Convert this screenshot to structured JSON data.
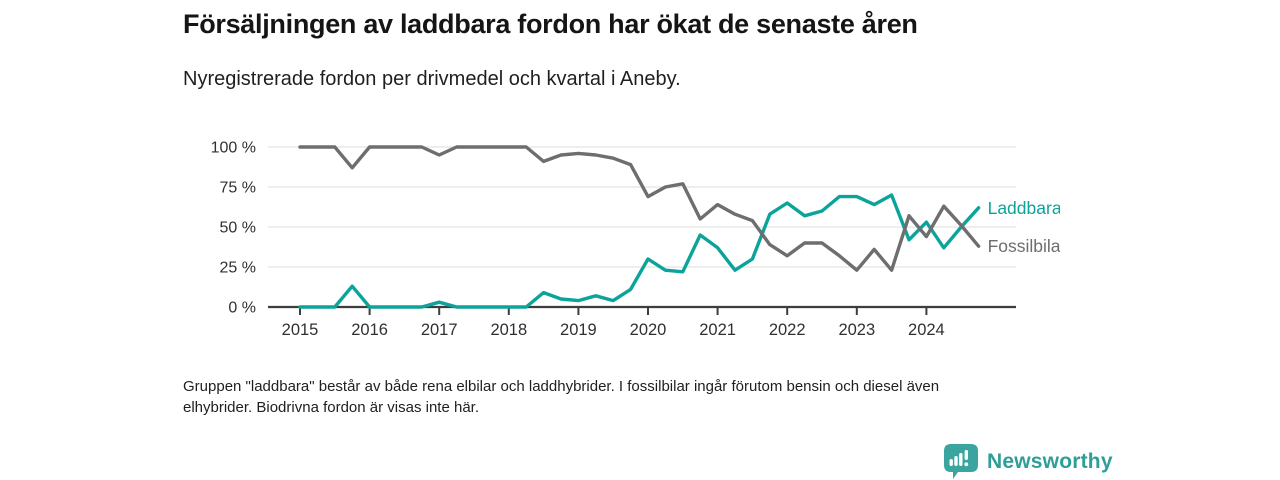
{
  "title": "Försäljningen av laddbara fordon har ökat de senaste åren",
  "subtitle": "Nyregistrerade fordon per drivmedel och kvartal i Aneby.",
  "footnote": "Gruppen \"laddbara\" består av både rena elbilar och laddhybrider. I fossilbilar ingår förutom bensin och diesel även elhybrider. Biodrivna fordon är visas inte här.",
  "branding": {
    "logo_icon": "bar-chart-speech-bubble-icon",
    "name": "Newsworthy"
  },
  "colors": {
    "laddbara": "#0ca39a",
    "fossilbilar": "#6e6e6e",
    "grid": "#e4e4e4",
    "axis": "#3d3d3d",
    "tick_text": "#303030",
    "logo_teal": "#3aa59f",
    "wordmark_teal": "#2e9e99",
    "background": "#ffffff"
  },
  "chart_data": {
    "type": "line",
    "title": "Nyregistrerade fordon per drivmedel och kvartal i Aneby",
    "unit": "%",
    "ylim": [
      0,
      100
    ],
    "grid": "horizontal",
    "legend_position": "end-of-line-labels-right",
    "ytick_values": [
      0,
      25,
      50,
      75,
      100
    ],
    "ytick_labels": [
      "0 %",
      "25 %",
      "50 %",
      "75 %",
      "100 %"
    ],
    "xtick_labels": [
      "2015",
      "2016",
      "2017",
      "2018",
      "2019",
      "2020",
      "2021",
      "2022",
      "2023",
      "2024"
    ],
    "x": [
      "2015Q1",
      "2015Q2",
      "2015Q3",
      "2015Q4",
      "2016Q1",
      "2016Q2",
      "2016Q3",
      "2016Q4",
      "2017Q1",
      "2017Q2",
      "2017Q3",
      "2017Q4",
      "2018Q1",
      "2018Q2",
      "2018Q3",
      "2018Q4",
      "2019Q1",
      "2019Q2",
      "2019Q3",
      "2019Q4",
      "2020Q1",
      "2020Q2",
      "2020Q3",
      "2020Q4",
      "2021Q1",
      "2021Q2",
      "2021Q3",
      "2021Q4",
      "2022Q1",
      "2022Q2",
      "2022Q3",
      "2022Q4",
      "2023Q1",
      "2023Q2",
      "2023Q3",
      "2023Q4",
      "2024Q1",
      "2024Q2",
      "2024Q3",
      "2024Q4"
    ],
    "series": [
      {
        "name": "Laddbara",
        "color": "#0ca39a",
        "values": [
          0,
          0,
          0,
          13,
          0,
          0,
          0,
          0,
          3,
          0,
          0,
          0,
          0,
          0,
          9,
          5,
          4,
          7,
          4,
          11,
          30,
          23,
          22,
          45,
          37,
          23,
          30,
          58,
          65,
          57,
          60,
          69,
          69,
          64,
          70,
          42,
          53,
          37,
          50,
          62
        ]
      },
      {
        "name": "Fossilbilar",
        "color": "#6e6e6e",
        "values": [
          100,
          100,
          100,
          87,
          100,
          100,
          100,
          100,
          95,
          100,
          100,
          100,
          100,
          100,
          91,
          95,
          96,
          95,
          93,
          89,
          69,
          75,
          77,
          55,
          64,
          58,
          54,
          39,
          32,
          40,
          40,
          32,
          23,
          36,
          23,
          57,
          44,
          63,
          51,
          38
        ]
      }
    ]
  }
}
